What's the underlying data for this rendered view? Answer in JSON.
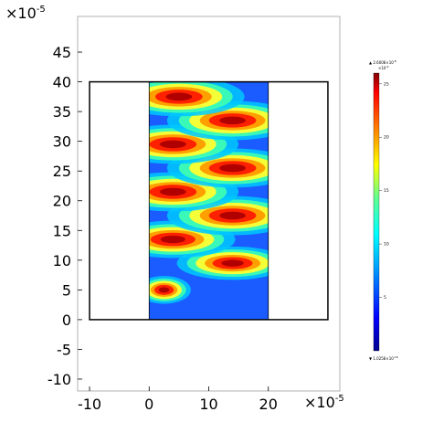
{
  "chart_data": {
    "type": "heatmap",
    "colormap": "rainbow (blue-cyan-green-yellow-red)",
    "x_axis": {
      "ticks": [
        "-10",
        "0",
        "10",
        "20"
      ],
      "exponent_base": "×10",
      "exponent_power": "-5",
      "range": [
        -12,
        32
      ]
    },
    "y_axis": {
      "ticks": [
        "-10",
        "-5",
        "0",
        "5",
        "10",
        "15",
        "20",
        "25",
        "30",
        "35",
        "40",
        "45"
      ],
      "exponent_base": "×10",
      "exponent_power": "-5",
      "range": [
        -12,
        51
      ]
    },
    "geometry": {
      "outer_rectangle": {
        "x": [
          -10,
          30
        ],
        "y": [
          0,
          40
        ]
      },
      "field_region": {
        "x": [
          0,
          20
        ],
        "y": [
          0,
          40
        ]
      }
    },
    "hot_spots": [
      {
        "x": 2.5,
        "y": 5,
        "intensity": 0.9
      },
      {
        "x": 14,
        "y": 9.5,
        "intensity": 0.85
      },
      {
        "x": 4,
        "y": 13.5,
        "intensity": 0.95
      },
      {
        "x": 14,
        "y": 17.5,
        "intensity": 1.0
      },
      {
        "x": 4,
        "y": 21.5,
        "intensity": 1.0
      },
      {
        "x": 14,
        "y": 25.5,
        "intensity": 1.0
      },
      {
        "x": 4,
        "y": 29.5,
        "intensity": 1.0
      },
      {
        "x": 14,
        "y": 33.5,
        "intensity": 1.0
      },
      {
        "x": 5,
        "y": 37.5,
        "intensity": 1.0
      }
    ],
    "colorbar": {
      "max_label": "▲ 2.6008×10",
      "max_power": "-8",
      "scale_label": "×10",
      "scale_power": "-9",
      "min_label": "▼ 1.0258×10",
      "min_power": "-16",
      "ticks": [
        "25",
        "20",
        "15",
        "10",
        "5"
      ],
      "range": [
        0,
        26.008
      ]
    }
  }
}
